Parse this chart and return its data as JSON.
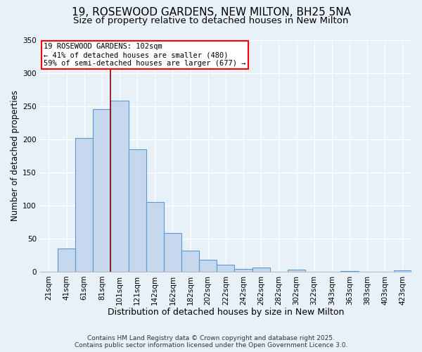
{
  "title1": "19, ROSEWOOD GARDENS, NEW MILTON, BH25 5NA",
  "title2": "Size of property relative to detached houses in New Milton",
  "xlabel": "Distribution of detached houses by size in New Milton",
  "ylabel": "Number of detached properties",
  "categories": [
    "21sqm",
    "41sqm",
    "61sqm",
    "81sqm",
    "101sqm",
    "121sqm",
    "142sqm",
    "162sqm",
    "182sqm",
    "202sqm",
    "222sqm",
    "242sqm",
    "262sqm",
    "282sqm",
    "302sqm",
    "322sqm",
    "343sqm",
    "363sqm",
    "383sqm",
    "403sqm",
    "423sqm"
  ],
  "values": [
    0,
    35,
    202,
    245,
    258,
    185,
    105,
    58,
    32,
    18,
    10,
    4,
    6,
    0,
    3,
    0,
    0,
    1,
    0,
    0,
    2
  ],
  "bar_color": "#c5d8ed",
  "bar_edge_color": "#5b9bd5",
  "bar_edge_width": 0.8,
  "annotation_line1": "19 ROSEWOOD GARDENS: 102sqm",
  "annotation_line2": "← 41% of detached houses are smaller (480)",
  "annotation_line3": "59% of semi-detached houses are larger (677) →",
  "annotation_box_color": "white",
  "annotation_box_edge_color": "red",
  "property_line_color": "#8b0000",
  "property_line_x": 3.5,
  "ylim": [
    0,
    350
  ],
  "yticks": [
    0,
    50,
    100,
    150,
    200,
    250,
    300,
    350
  ],
  "background_color": "#e8f0f8",
  "axes_facecolor": "#e8f0f8",
  "grid_color": "white",
  "footer1": "Contains HM Land Registry data © Crown copyright and database right 2025.",
  "footer2": "Contains public sector information licensed under the Open Government Licence 3.0.",
  "title1_fontsize": 11,
  "title2_fontsize": 9.5,
  "xlabel_fontsize": 9,
  "ylabel_fontsize": 8.5,
  "tick_fontsize": 7.5,
  "annotation_fontsize": 7.5,
  "footer_fontsize": 6.5
}
